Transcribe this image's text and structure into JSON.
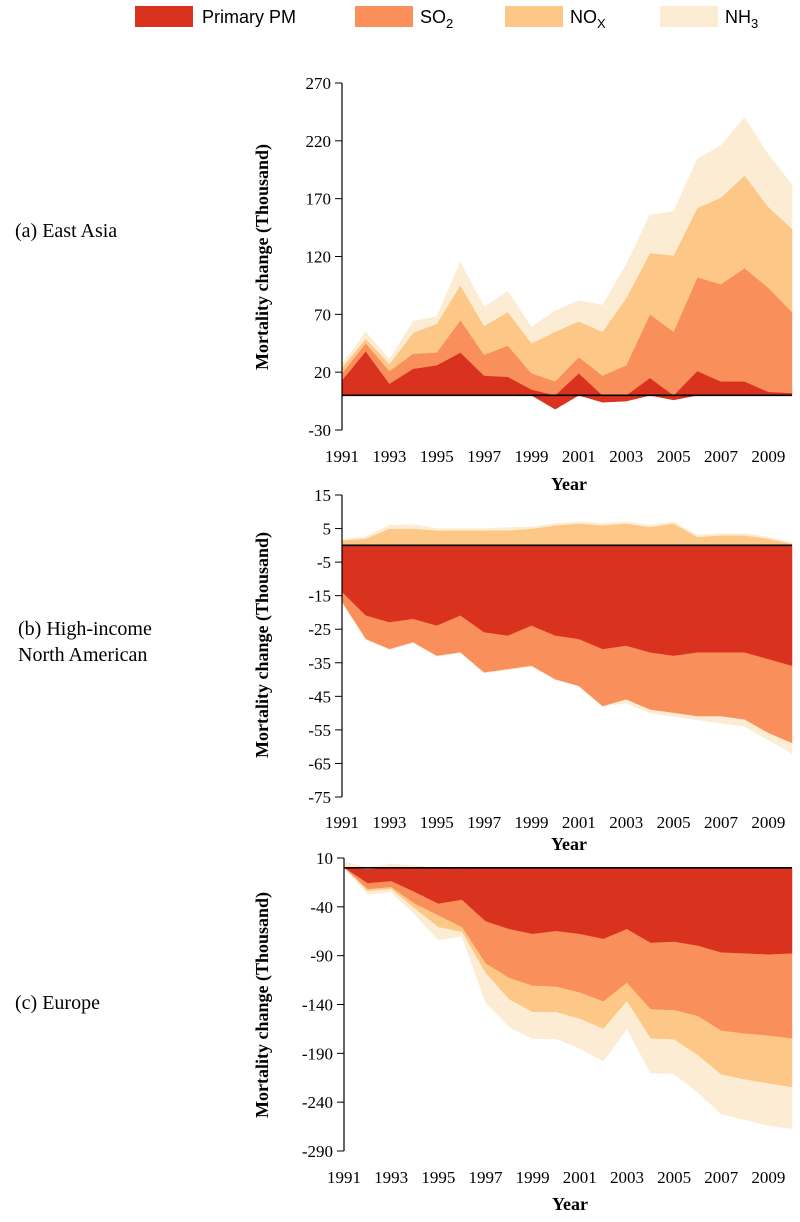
{
  "legend": {
    "items": [
      {
        "base": "Primary PM",
        "sub": "",
        "color": "#d93320"
      },
      {
        "base": "SO",
        "sub": "2",
        "color": "#f98f5b"
      },
      {
        "base": "NO",
        "sub": "X",
        "color": "#fdc887"
      },
      {
        "base": "NH",
        "sub": "3",
        "color": "#fdecd4"
      }
    ]
  },
  "chart_data": [
    {
      "type": "area",
      "stacked": true,
      "region_label": [
        "(a) East Asia"
      ],
      "xlabel": "Year",
      "ylabel": "Mortality change (Thousand)",
      "xlim": [
        1991,
        2010
      ],
      "ylim": [
        -30,
        270
      ],
      "yticks": [
        270,
        220,
        170,
        120,
        70,
        20,
        -30
      ],
      "xticks": [
        1991,
        1993,
        1995,
        1997,
        1999,
        2001,
        2003,
        2005,
        2007,
        2009
      ],
      "x": [
        1991,
        1992,
        1993,
        1994,
        1995,
        1996,
        1997,
        1998,
        1999,
        2000,
        2001,
        2002,
        2003,
        2004,
        2005,
        2006,
        2007,
        2008,
        2009,
        2010
      ],
      "series": [
        {
          "name": "Primary PM",
          "values": [
            13,
            38,
            10,
            23,
            26,
            37,
            17,
            16,
            5,
            -12,
            19,
            -6,
            -5,
            15,
            -4,
            21,
            12,
            12,
            3,
            2
          ]
        },
        {
          "name": "SO2",
          "values": [
            6,
            7,
            11,
            13,
            11,
            28,
            18,
            27,
            14,
            12,
            14,
            17,
            26,
            55,
            55,
            81,
            84,
            98,
            90,
            70
          ]
        },
        {
          "name": "NOX",
          "values": [
            5,
            4,
            6,
            18,
            25,
            30,
            25,
            29,
            26,
            43,
            31,
            38,
            58,
            53,
            66,
            60,
            75,
            80,
            70,
            72
          ]
        },
        {
          "name": "NH3",
          "values": [
            3,
            6,
            4,
            10,
            6,
            20,
            16,
            18,
            14,
            18,
            18,
            23,
            29,
            33,
            38,
            42,
            45,
            50,
            45,
            38
          ]
        }
      ]
    },
    {
      "type": "area",
      "stacked": true,
      "region_label": [
        "(b) High-income",
        "North American"
      ],
      "xlabel": "Year",
      "ylabel": "Mortality change (Thousand)",
      "xlim": [
        1991,
        2010
      ],
      "ylim": [
        -75,
        15
      ],
      "yticks": [
        15,
        5,
        -5,
        -15,
        -25,
        -35,
        -45,
        -55,
        -65,
        -75
      ],
      "xticks": [
        1991,
        1993,
        1995,
        1997,
        1999,
        2001,
        2003,
        2005,
        2007,
        2009
      ],
      "x": [
        1991,
        1992,
        1993,
        1994,
        1995,
        1996,
        1997,
        1998,
        1999,
        2000,
        2001,
        2002,
        2003,
        2004,
        2005,
        2006,
        2007,
        2008,
        2009,
        2010
      ],
      "series": [
        {
          "name": "Primary PM",
          "values": [
            -14,
            -21,
            -23,
            -22,
            -24,
            -21,
            -26,
            -27,
            -24,
            -27,
            -28,
            -31,
            -30,
            -32,
            -33,
            -32,
            -32,
            -32,
            -34,
            -36
          ]
        },
        {
          "name": "SO2",
          "values": [
            -3,
            -7,
            -8,
            -7,
            -9,
            -11,
            -12,
            -10,
            -12,
            -13,
            -14,
            -17,
            -16,
            -17,
            -17,
            -19,
            -19,
            -20,
            -22,
            -23
          ]
        },
        {
          "name": "NOX",
          "values": [
            1.5,
            2,
            5,
            5,
            4.5,
            4.5,
            4.5,
            4.5,
            5,
            6,
            6.5,
            6,
            6.5,
            5.5,
            6.5,
            2.5,
            3,
            3,
            2,
            0.5
          ]
        },
        {
          "name": "NH3",
          "values": [
            0.3,
            0.5,
            1,
            1.2,
            0.5,
            0.5,
            0.5,
            0.8,
            0.5,
            0.5,
            0.5,
            0.5,
            0.5,
            0.5,
            0.5,
            0.5,
            0.5,
            0.5,
            0.5,
            0.3
          ]
        }
      ],
      "nh3_negative": [
        0,
        0,
        0,
        0,
        0,
        0,
        0,
        0,
        0,
        0,
        0,
        0,
        -1,
        -1,
        -1,
        -1,
        -2,
        -2,
        -2,
        -3
      ]
    },
    {
      "type": "area",
      "stacked": true,
      "region_label": [
        "(c) Europe"
      ],
      "xlabel": "Year",
      "ylabel": "Mortality change (Thousand)",
      "xlim": [
        1991,
        2010
      ],
      "ylim": [
        -290,
        10
      ],
      "yticks": [
        10,
        -40,
        -90,
        -140,
        -190,
        -240,
        -290
      ],
      "xticks": [
        1991,
        1993,
        1995,
        1997,
        1999,
        2001,
        2003,
        2005,
        2007,
        2009
      ],
      "x": [
        1991,
        1992,
        1993,
        1994,
        1995,
        1996,
        1997,
        1998,
        1999,
        2000,
        2001,
        2002,
        2003,
        2004,
        2005,
        2006,
        2007,
        2008,
        2009,
        2010
      ],
      "series": [
        {
          "name": "Primary PM",
          "values": [
            0,
            -16,
            -14,
            -25,
            -37,
            -33,
            -55,
            -63,
            -68,
            -65,
            -68,
            -73,
            -63,
            -77,
            -76,
            -80,
            -87,
            -88,
            -89,
            -88
          ]
        },
        {
          "name": "SO2",
          "values": [
            0,
            -6,
            -6,
            -12,
            -12,
            -28,
            -43,
            -50,
            -53,
            -57,
            -60,
            -64,
            -55,
            -68,
            -70,
            -72,
            -80,
            -82,
            -83,
            -87
          ]
        },
        {
          "name": "NOX",
          "values": [
            0,
            -2,
            -2,
            -5,
            -12,
            -5,
            -10,
            -22,
            -27,
            -26,
            -27,
            -28,
            -19,
            -30,
            -30,
            -40,
            -45,
            -47,
            -49,
            -50
          ]
        },
        {
          "name": "NH3",
          "values": [
            0,
            -3,
            -3,
            -6,
            -13,
            -4,
            -30,
            -28,
            -27,
            -27,
            -30,
            -33,
            -28,
            -35,
            -35,
            -38,
            -40,
            -41,
            -43,
            -42
          ]
        }
      ],
      "positive_top": [
        6,
        -1,
        4,
        2,
        0,
        1,
        0,
        0,
        0,
        0,
        0,
        0,
        0,
        0,
        0,
        0,
        0,
        0,
        0,
        0
      ]
    }
  ]
}
